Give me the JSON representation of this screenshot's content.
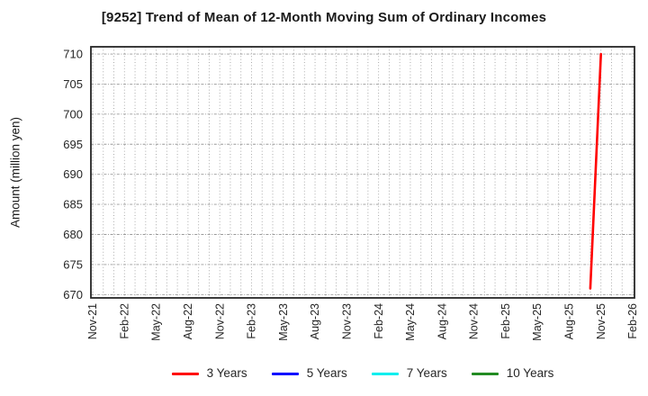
{
  "title": "[9252]  Trend of Mean of 12-Month Moving Sum of Ordinary Incomes",
  "chart_data": {
    "type": "line",
    "title": "[9252]  Trend of Mean of 12-Month Moving Sum of Ordinary Incomes",
    "xlabel": "",
    "ylabel": "Amount (million yen)",
    "ylim": [
      670,
      710
    ],
    "y_ticks": [
      670,
      675,
      680,
      685,
      690,
      695,
      700,
      705,
      710
    ],
    "x_tick_labels": [
      "Nov-21",
      "Feb-22",
      "May-22",
      "Aug-22",
      "Nov-22",
      "Feb-23",
      "May-23",
      "Aug-23",
      "Nov-23",
      "Feb-24",
      "May-24",
      "Aug-24",
      "Nov-24",
      "Feb-25",
      "May-25",
      "Aug-25",
      "Nov-25",
      "Feb-26"
    ],
    "grid": true,
    "legend_position": "bottom",
    "series": [
      {
        "name": "3 Years",
        "color": "#ff0000",
        "points": [
          {
            "x": "Oct-25",
            "y": 671
          },
          {
            "x": "Nov-25",
            "y": 710
          }
        ]
      },
      {
        "name": "5 Years",
        "color": "#0000ff",
        "points": []
      },
      {
        "name": "7 Years",
        "color": "#00eeee",
        "points": []
      },
      {
        "name": "10 Years",
        "color": "#228b22",
        "points": []
      }
    ]
  }
}
